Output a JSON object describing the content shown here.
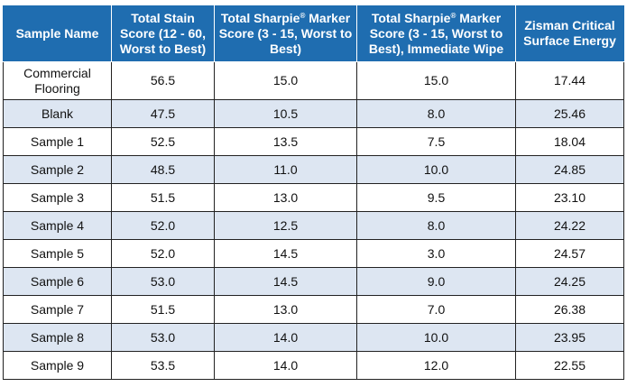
{
  "headers": [
    {
      "text": "Sample Name",
      "sup": "",
      "tail": ""
    },
    {
      "text": "Total Stain Score (12 - 60, Worst to Best)",
      "sup": "",
      "tail": ""
    },
    {
      "text": "Total Sharpie",
      "sup": "®",
      "tail": " Marker Score (3 - 15, Worst to Best)"
    },
    {
      "text": "Total Sharpie",
      "sup": "®",
      "tail": " Marker Score (3 - 15, Worst to Best), Immediate Wipe"
    },
    {
      "text": "Zisman Critical Surface Energy",
      "sup": "",
      "tail": ""
    }
  ],
  "rows": [
    [
      "Commercial Flooring",
      "56.5",
      "15.0",
      "15.0",
      "17.44"
    ],
    [
      "Blank",
      "47.5",
      "10.5",
      "8.0",
      "25.46"
    ],
    [
      "Sample 1",
      "52.5",
      "13.5",
      "7.5",
      "18.04"
    ],
    [
      "Sample 2",
      "48.5",
      "11.0",
      "10.0",
      "24.85"
    ],
    [
      "Sample 3",
      "51.5",
      "13.0",
      "9.5",
      "23.10"
    ],
    [
      "Sample 4",
      "52.0",
      "12.5",
      "8.0",
      "24.22"
    ],
    [
      "Sample 5",
      "52.0",
      "14.5",
      "3.0",
      "24.57"
    ],
    [
      "Sample 6",
      "53.0",
      "14.5",
      "9.0",
      "24.25"
    ],
    [
      "Sample 7",
      "51.5",
      "13.0",
      "7.0",
      "26.38"
    ],
    [
      "Sample 8",
      "53.0",
      "14.0",
      "10.0",
      "23.95"
    ],
    [
      "Sample 9",
      "53.5",
      "14.0",
      "12.0",
      "22.55"
    ]
  ],
  "colors": {
    "header_bg": "#1f6db0",
    "header_text": "#ffffff",
    "alt_row_bg": "#dde6f2",
    "border": "#222222"
  }
}
